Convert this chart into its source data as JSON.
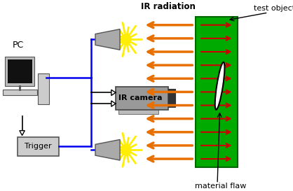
{
  "bg_color": "#ffffff",
  "fig_width": 4.18,
  "fig_height": 2.73,
  "dpi": 100,
  "label_pc": "PC",
  "label_trigger": "Trigger",
  "label_ir_camera": "IR camera",
  "label_ir_radiation": "IR radiation",
  "label_test_object": "test object",
  "label_material_flaw": "material flaw",
  "orange_arrow_color": "#e87000",
  "red_arrow_color": "#cc0000",
  "blue_line_color": "#0000ee",
  "black_color": "#000000",
  "gray_body": "#aaaaaa",
  "gray_dark": "#555555",
  "green_face": "#00aa00",
  "green_edge": "#006600",
  "yellow_flash": "#ffee00",
  "trigger_face": "#cccccc",
  "cam_face": "#999999",
  "cam_edge": "#444444",
  "cam_dark": "#333333",
  "pc_bezel": "#bbbbbb",
  "pc_screen": "#111111",
  "pc_kb": "#cccccc"
}
